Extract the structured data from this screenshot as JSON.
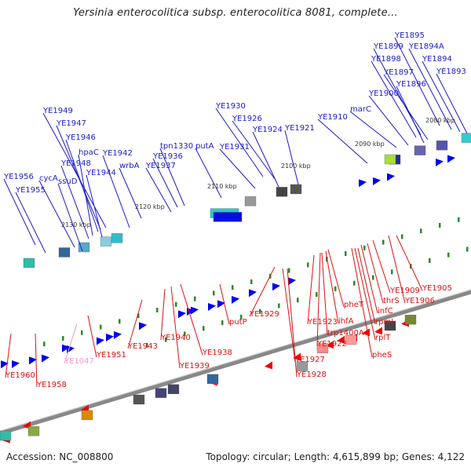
{
  "title": "Yersinia enterocolitica subsp. enterocolitica 8081, complete...",
  "footer": {
    "accession_label": "Accession:",
    "accession": "NC_008800",
    "topology_label": "Topology:",
    "topology": "circular",
    "length_label": "Length:",
    "length": "4,615,899 bp",
    "genes_label": "Genes:",
    "genes": "4,122"
  },
  "colors": {
    "forward_label": "#1a1acc",
    "reverse_label": "#dd1111",
    "pseudo_label": "#ee99cc",
    "forward_arrow": "#0000ee",
    "reverse_arrow": "#ee0000",
    "backbone": "#888888",
    "tick": "#2a8a2a"
  },
  "scale_labels": [
    "2080 kbp",
    "2090 kbp",
    "2100 kbp",
    "2110 kbp",
    "2120 kbp",
    "2130 kbp"
  ],
  "forward_genes": [
    "YE1895",
    "YE1894A",
    "YE1899",
    "YE1894",
    "YE1898",
    "YE1897",
    "YE1893",
    "YE1896",
    "YE1900",
    "marC",
    "YE1910",
    "YE1930",
    "YE1926",
    "YE1924",
    "YE1921",
    "YE1931",
    "putA",
    "tpn1330",
    "YE1936",
    "YE1937",
    "wrbA",
    "YE1942",
    "YE1949",
    "YE1947",
    "YE1946",
    "hpaC",
    "YE1948",
    "YE1944",
    "YE1956",
    "cycA",
    "ssuD",
    "YE1955"
  ],
  "reverse_genes": [
    "YE1905",
    "YE1906",
    "YE1909",
    "thrS",
    "infC",
    "rpmI",
    "rplT",
    "pheS",
    "pheT",
    "ihfA",
    "trp1400A",
    "YE1922",
    "YE1923",
    "YE1929",
    "YE1927",
    "YE1928",
    "putP",
    "YE1938",
    "YE1939",
    "YE1940",
    "YE1943",
    "YE1951",
    "YE1047",
    "YE1958",
    "YE1960"
  ],
  "pseudo_genes": [
    "YE1047"
  ]
}
